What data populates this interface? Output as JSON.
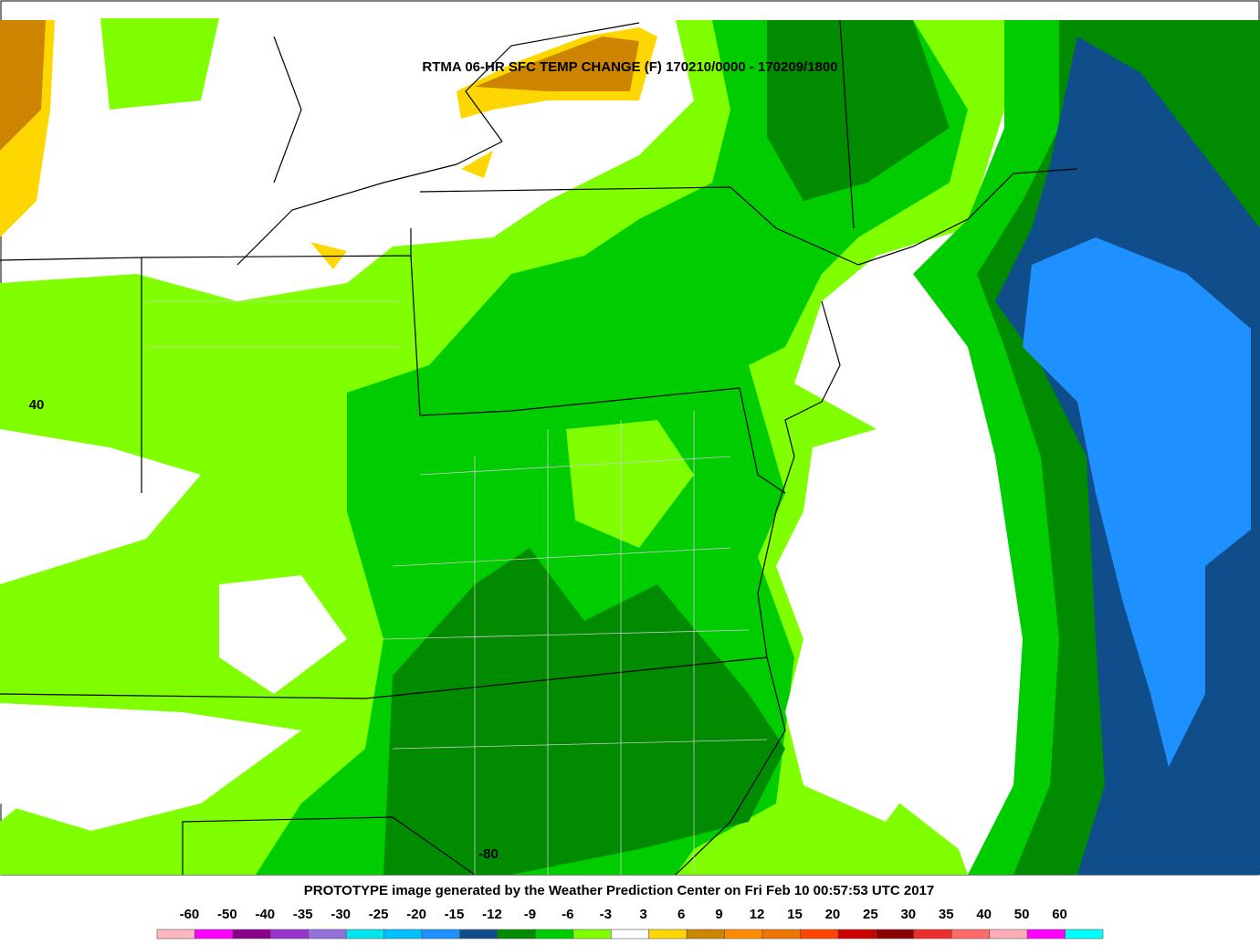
{
  "map": {
    "title": "RTMA 06-HR SFC TEMP CHANGE (F) 170210/0000 - 170209/1800",
    "footer": "PROTOTYPE image generated by the Weather Prediction Center on Fri Feb 10 00:57:53 UTC 2017",
    "grid_labels": [
      "40",
      "-80"
    ],
    "legend": {
      "labels": [
        -60,
        -50,
        -40,
        -35,
        -30,
        -25,
        -20,
        -15,
        -12,
        -9,
        -6,
        -3,
        3,
        6,
        9,
        12,
        15,
        20,
        25,
        30,
        35,
        40,
        50,
        60
      ],
      "colors": [
        "#ffb6c1",
        "#ff00ff",
        "#8b008b",
        "#9a32cd",
        "#9370db",
        "#00e5ee",
        "#00bfff",
        "#1e90ff",
        "#104e8b",
        "#008b00",
        "#00cd00",
        "#7fff00",
        "#ffffff",
        "#ffd700",
        "#cd8500",
        "#ff8c00",
        "#ee7600",
        "#ff4500",
        "#cd0000",
        "#8b0000",
        "#ee2c2c",
        "#ff6a6a",
        "#ffaeb9",
        "#ff00ff",
        "#00ffff"
      ]
    }
  }
}
